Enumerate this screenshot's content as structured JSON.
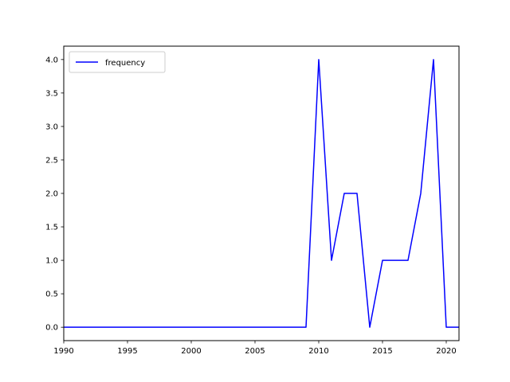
{
  "chart_data": {
    "type": "line",
    "title": "",
    "xlabel": "",
    "ylabel": "",
    "xlim": [
      1990,
      2021
    ],
    "ylim": [
      -0.2,
      4.2
    ],
    "x_ticks": [
      1990,
      1995,
      2000,
      2005,
      2010,
      2015,
      2020
    ],
    "x_tick_labels": [
      "1990",
      "1995",
      "2000",
      "2005",
      "2010",
      "2015",
      "2020"
    ],
    "y_ticks": [
      0,
      0.5,
      1,
      1.5,
      2,
      2.5,
      3,
      3.5,
      4
    ],
    "y_tick_labels": [
      "0.0",
      "0.5",
      "1.0",
      "1.5",
      "2.0",
      "2.5",
      "3.0",
      "3.5",
      "4.0"
    ],
    "grid": false,
    "legend_position": "top-left",
    "x": [
      1990,
      1991,
      1992,
      1993,
      1994,
      1995,
      1996,
      1997,
      1998,
      1999,
      2000,
      2001,
      2002,
      2003,
      2004,
      2005,
      2006,
      2007,
      2008,
      2009,
      2010,
      2011,
      2012,
      2013,
      2014,
      2015,
      2016,
      2017,
      2018,
      2019,
      2020,
      2021
    ],
    "series": [
      {
        "name": "frequency",
        "color": "#0000ff",
        "values": [
          0,
          0,
          0,
          0,
          0,
          0,
          0,
          0,
          0,
          0,
          0,
          0,
          0,
          0,
          0,
          0,
          0,
          0,
          0,
          0,
          4,
          1,
          2,
          2,
          0,
          1,
          1,
          1,
          2,
          4,
          0,
          0
        ]
      }
    ]
  }
}
